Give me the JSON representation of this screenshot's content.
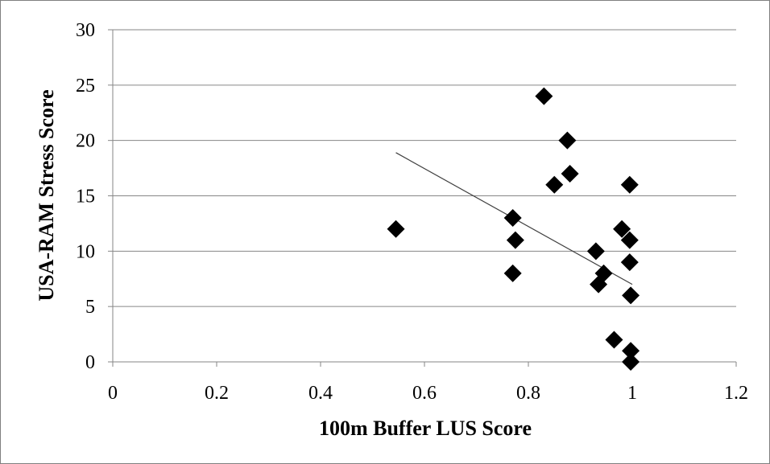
{
  "chart_data": {
    "type": "scatter",
    "title": "",
    "xlabel": "100m Buffer LUS Score",
    "ylabel": "USA-RAM Stress Score",
    "xlim": [
      0,
      1.2
    ],
    "ylim": [
      0,
      30
    ],
    "xticks": [
      "0",
      "0.2",
      "0.4",
      "0.6",
      "0.8",
      "1",
      "1.2"
    ],
    "yticks": [
      "0",
      "5",
      "10",
      "15",
      "20",
      "25",
      "30"
    ],
    "grid": "horizontal",
    "legend": "none",
    "marker": "diamond",
    "marker_color": "#000000",
    "trendline": {
      "type": "linear",
      "from": {
        "x": 0.545,
        "y": 18.9
      },
      "to": {
        "x": 1.0,
        "y": 7.0
      },
      "color": "#404040"
    },
    "points": [
      {
        "x": 0.545,
        "y": 12
      },
      {
        "x": 0.77,
        "y": 8
      },
      {
        "x": 0.77,
        "y": 13
      },
      {
        "x": 0.775,
        "y": 11
      },
      {
        "x": 0.83,
        "y": 24
      },
      {
        "x": 0.85,
        "y": 16
      },
      {
        "x": 0.875,
        "y": 20
      },
      {
        "x": 0.88,
        "y": 17
      },
      {
        "x": 0.93,
        "y": 10
      },
      {
        "x": 0.935,
        "y": 7
      },
      {
        "x": 0.945,
        "y": 8
      },
      {
        "x": 0.965,
        "y": 2
      },
      {
        "x": 0.98,
        "y": 12
      },
      {
        "x": 0.995,
        "y": 9
      },
      {
        "x": 0.995,
        "y": 16
      },
      {
        "x": 0.995,
        "y": 11
      },
      {
        "x": 0.997,
        "y": 6
      },
      {
        "x": 0.997,
        "y": 1
      },
      {
        "x": 0.997,
        "y": 0
      }
    ]
  }
}
